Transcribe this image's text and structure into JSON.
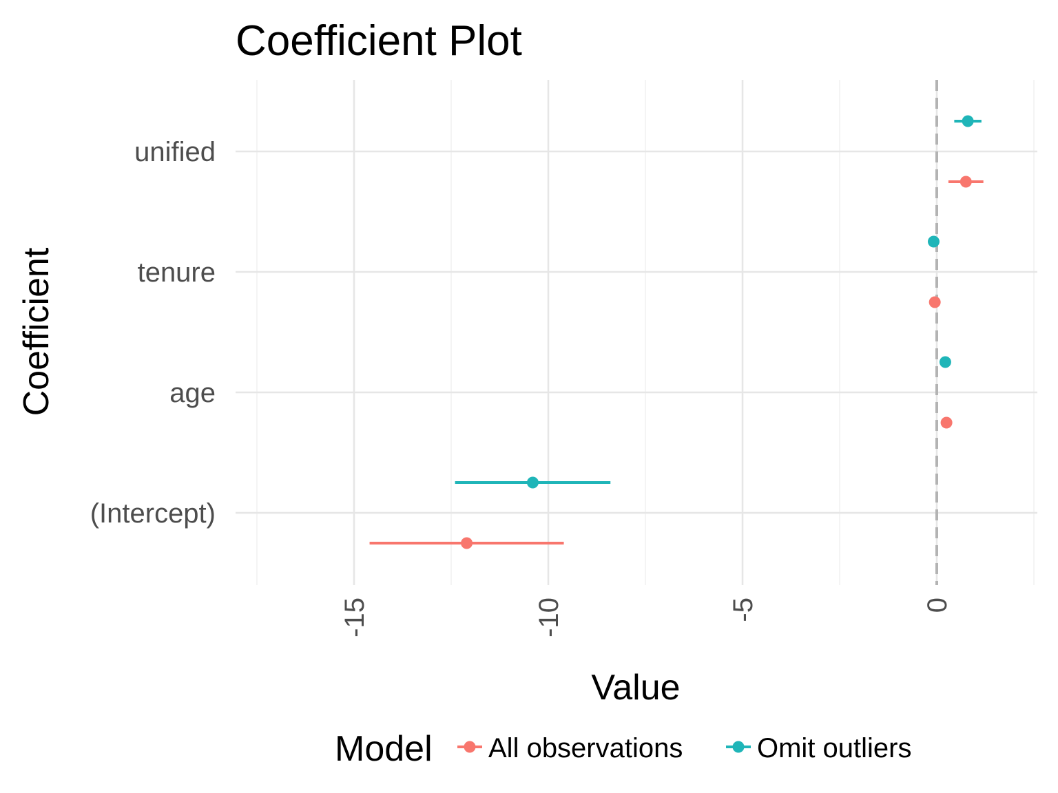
{
  "chart_data": {
    "type": "scatter",
    "subtype": "coefficient-plot",
    "title": "Coefficient Plot",
    "xlabel": "Value",
    "ylabel": "Coefficient",
    "xlim": [
      -17.5,
      2.6
    ],
    "x_ticks": [
      -15,
      -10,
      -5,
      0
    ],
    "x_tick_labels": [
      "-15",
      "-10",
      "-5",
      "0"
    ],
    "categories": [
      "(Intercept)",
      "age",
      "tenure",
      "unified"
    ],
    "reference_line": {
      "x": 0,
      "style": "dashed"
    },
    "grid": true,
    "legend": {
      "title": "Model",
      "position": "bottom"
    },
    "series": [
      {
        "name": "All observations",
        "color": "#F8766D",
        "estimates": [
          -12.1,
          0.25,
          -0.05,
          0.75
        ],
        "lower": [
          -14.6,
          0.2,
          -0.1,
          0.3
        ],
        "upper": [
          -9.6,
          0.3,
          0.0,
          1.2
        ]
      },
      {
        "name": "Omit outliers",
        "color": "#1FB5B8",
        "estimates": [
          -10.4,
          0.22,
          -0.08,
          0.8
        ],
        "lower": [
          -12.4,
          0.17,
          -0.12,
          0.45
        ],
        "upper": [
          -8.4,
          0.27,
          -0.04,
          1.15
        ]
      }
    ]
  }
}
